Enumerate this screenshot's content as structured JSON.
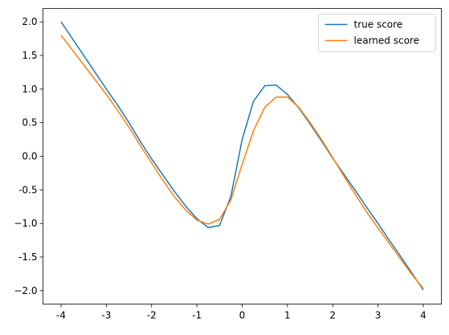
{
  "chart_data": {
    "type": "line",
    "x": [
      -4,
      -3.75,
      -3.5,
      -3.25,
      -3,
      -2.75,
      -2.5,
      -2.25,
      -2,
      -1.75,
      -1.5,
      -1.25,
      -1,
      -0.75,
      -0.5,
      -0.25,
      0,
      0.25,
      0.5,
      0.75,
      1,
      1.25,
      1.5,
      1.75,
      2,
      2.25,
      2.5,
      2.75,
      3,
      3.25,
      3.5,
      3.75,
      4
    ],
    "series": [
      {
        "name": "true score",
        "color": "#1f77b4",
        "values": [
          2.0,
          1.75,
          1.5,
          1.25,
          1.0,
          0.76,
          0.5,
          0.22,
          -0.04,
          -0.28,
          -0.52,
          -0.74,
          -0.93,
          -1.06,
          -1.03,
          -0.6,
          0.25,
          0.82,
          1.05,
          1.06,
          0.92,
          0.72,
          0.48,
          0.23,
          -0.03,
          -0.27,
          -0.51,
          -0.76,
          -1.0,
          -1.25,
          -1.49,
          -1.74,
          -1.99
        ]
      },
      {
        "name": "learned score",
        "color": "#ff7f0e",
        "values": [
          1.8,
          1.58,
          1.36,
          1.14,
          0.92,
          0.68,
          0.43,
          0.16,
          -0.1,
          -0.36,
          -0.6,
          -0.8,
          -0.95,
          -1.01,
          -0.94,
          -0.65,
          -0.12,
          0.38,
          0.73,
          0.88,
          0.88,
          0.73,
          0.5,
          0.25,
          -0.02,
          -0.3,
          -0.57,
          -0.83,
          -1.07,
          -1.3,
          -1.53,
          -1.76,
          -1.97
        ]
      }
    ],
    "xlim": [
      -4.4,
      4.4
    ],
    "ylim": [
      -2.2,
      2.2
    ],
    "xticks": [
      -4,
      -3,
      -2,
      -1,
      0,
      1,
      2,
      3,
      4
    ],
    "yticks": [
      {
        "value": -2,
        "label": "−2.0"
      },
      -1.5,
      {
        "value": -1,
        "label": "−1.0"
      },
      -0.5,
      {
        "value": 0,
        "label": "0.0"
      },
      0.5,
      {
        "value": 1,
        "label": "1.0"
      },
      1.5,
      {
        "value": 2,
        "label": "2.0"
      }
    ],
    "legend": "upper right"
  }
}
